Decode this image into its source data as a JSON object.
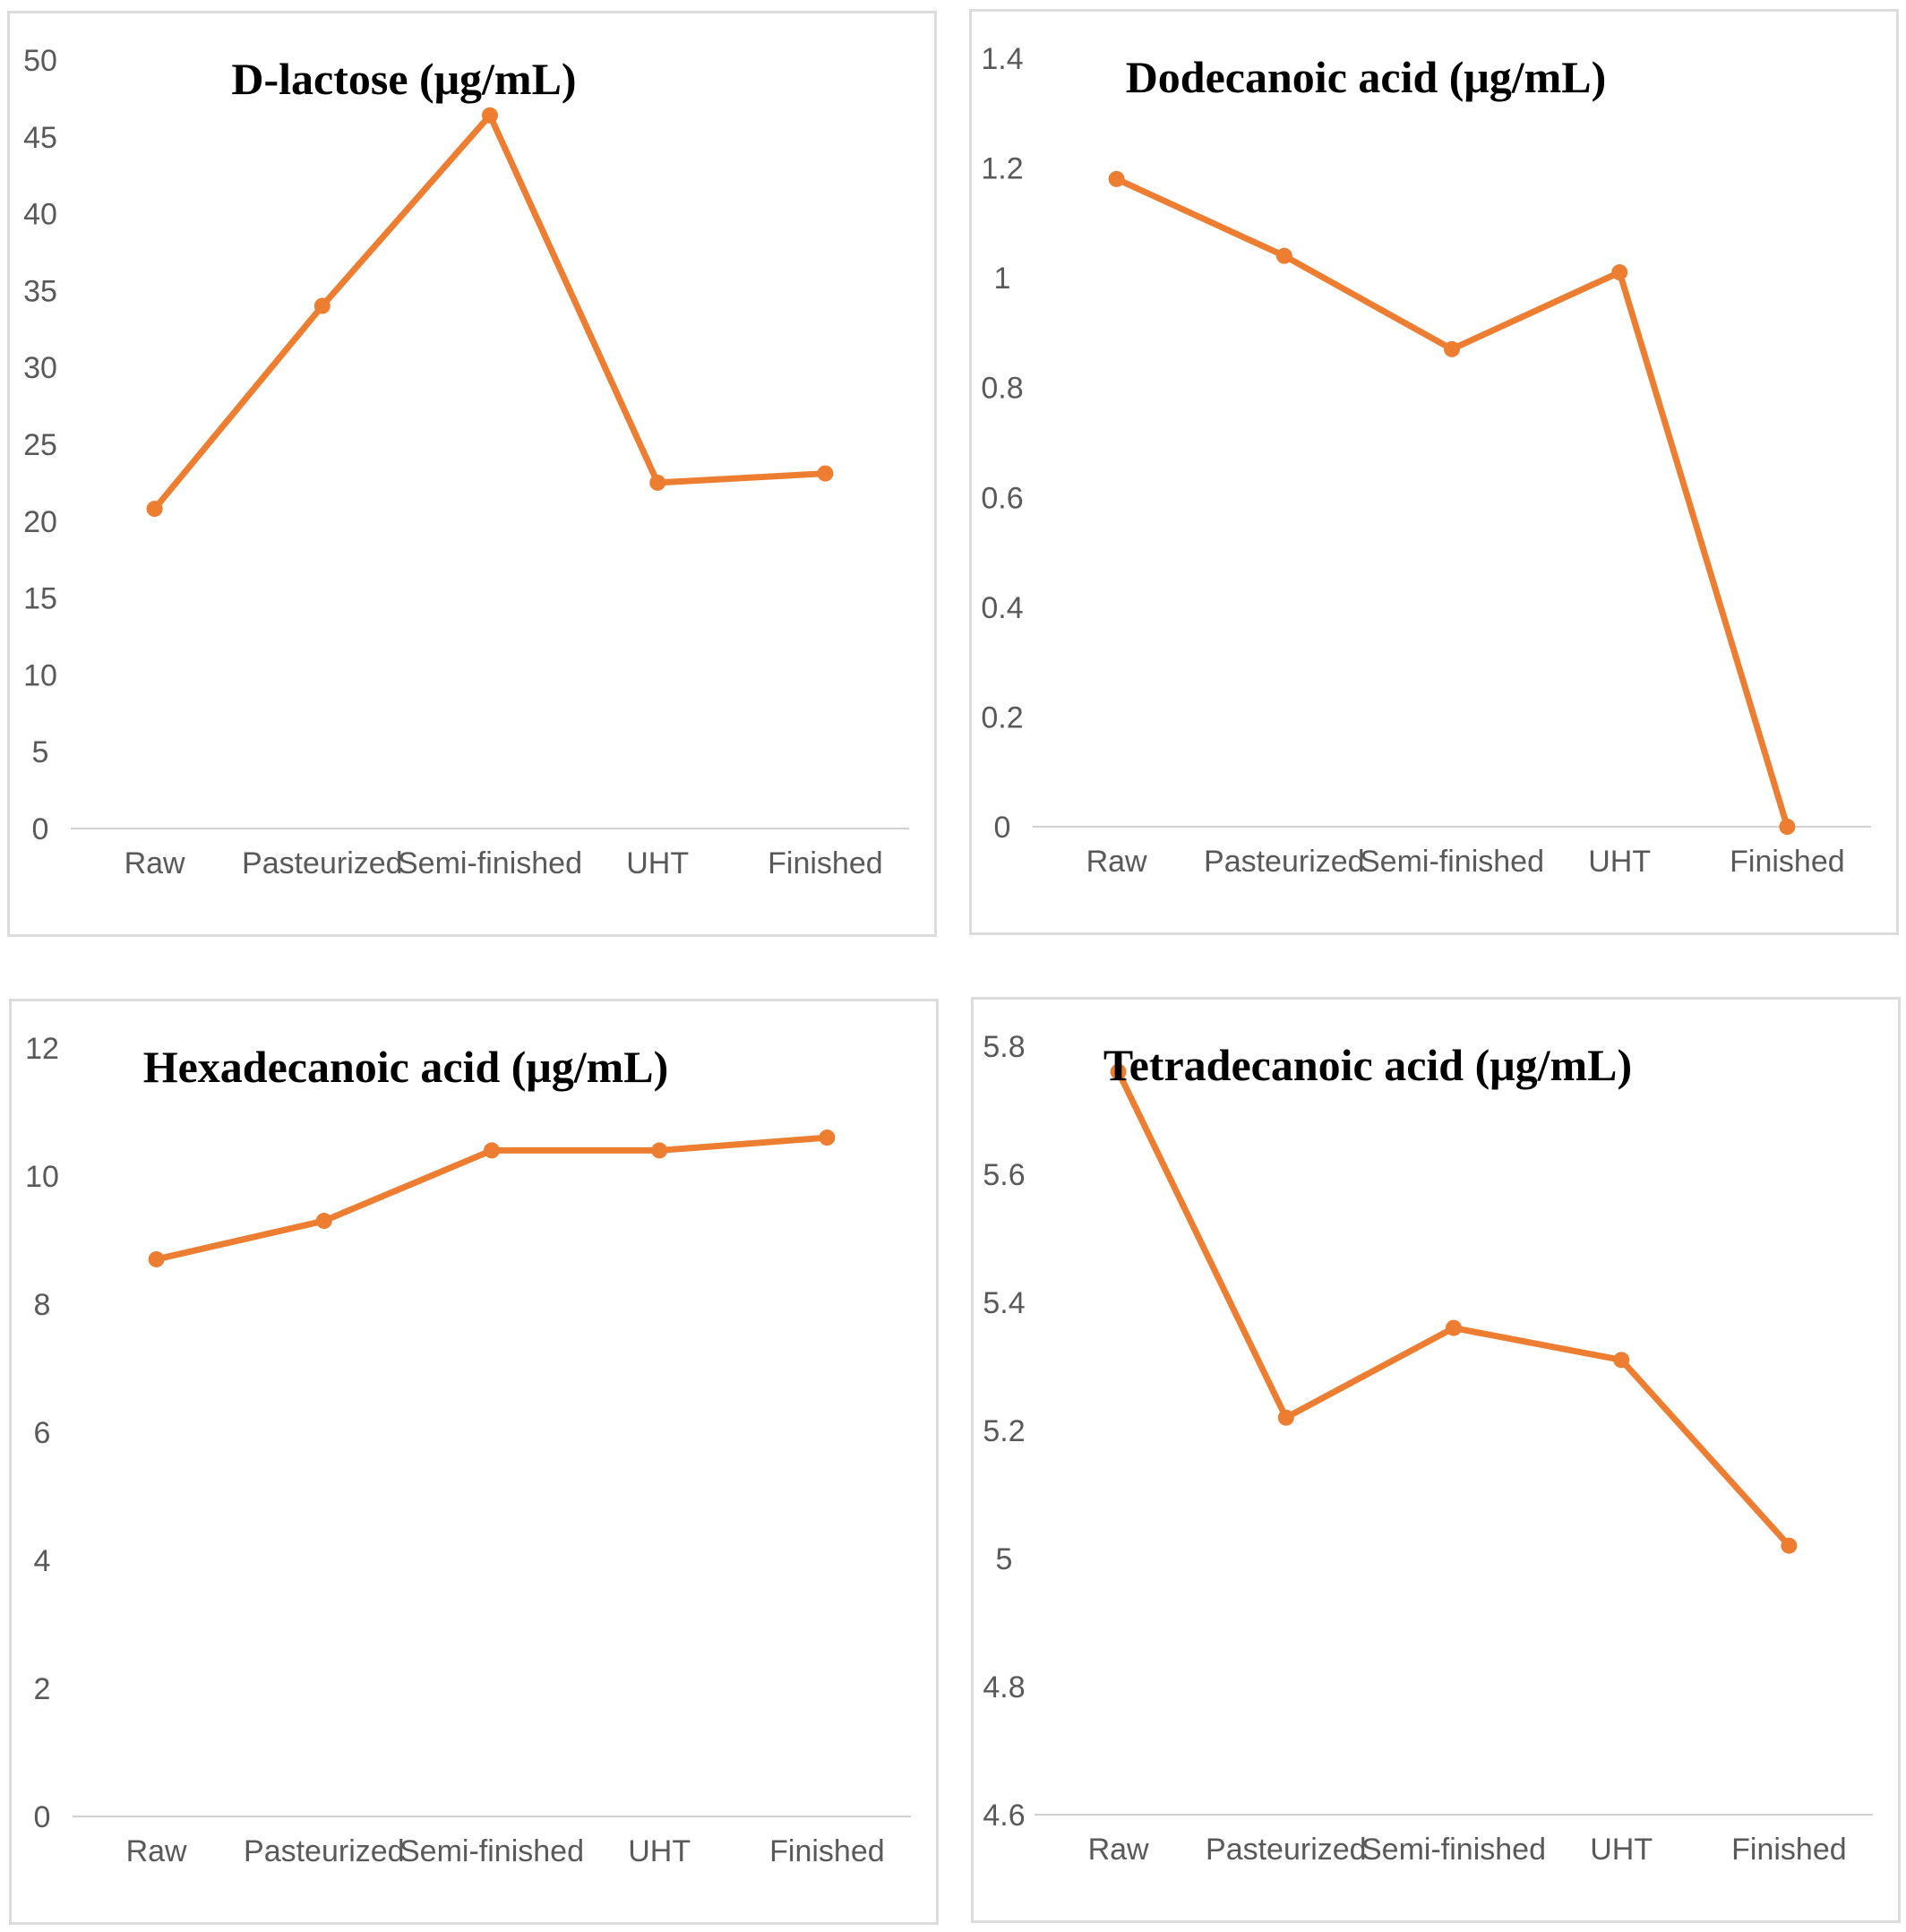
{
  "style": {
    "line_color": "#ED7D31",
    "axis_color": "#d0d0d0",
    "text_color": "#595959"
  },
  "chart_data": [
    {
      "type": "line",
      "title": "D-lactose (μg/mL)",
      "categories": [
        "Raw",
        "Pasteurized",
        "Semi-finished",
        "UHT",
        "Finished"
      ],
      "series": [
        {
          "values": [
            20.8,
            34.0,
            46.4,
            22.5,
            23.1
          ]
        }
      ],
      "ylim": [
        0,
        50
      ],
      "yticks": [
        "0",
        "5",
        "10",
        "15",
        "20",
        "25",
        "30",
        "35",
        "40",
        "45",
        "50"
      ],
      "grid": false
    },
    {
      "type": "line",
      "title": "Dodecanoic acid (μg/mL)",
      "categories": [
        "Raw",
        "Pasteurized",
        "Semi-finished",
        "UHT",
        "Finished"
      ],
      "series": [
        {
          "values": [
            1.18,
            1.04,
            0.87,
            1.01,
            0.0
          ]
        }
      ],
      "ylim": [
        0,
        1.4
      ],
      "yticks": [
        "0",
        "0.2",
        "0.4",
        "0.6",
        "0.8",
        "1",
        "1.2",
        "1.4"
      ],
      "grid": false
    },
    {
      "type": "line",
      "title": "Hexadecanoic acid (μg/mL)",
      "categories": [
        "Raw",
        "Pasteurized",
        "Semi-finished",
        "UHT",
        "Finished"
      ],
      "series": [
        {
          "values": [
            8.7,
            9.3,
            10.4,
            10.4,
            10.6
          ]
        }
      ],
      "ylim": [
        0,
        12
      ],
      "yticks": [
        "0",
        "2",
        "4",
        "6",
        "8",
        "10",
        "12"
      ],
      "grid": false
    },
    {
      "type": "line",
      "title": "Tetradecanoic acid (μg/mL)",
      "categories": [
        "Raw",
        "Pasteurized",
        "Semi-finished",
        "UHT",
        "Finished"
      ],
      "series": [
        {
          "values": [
            5.76,
            5.22,
            5.36,
            5.31,
            5.02
          ]
        }
      ],
      "ylim": [
        4.6,
        5.8
      ],
      "yticks": [
        "4.6",
        "4.8",
        "5",
        "5.2",
        "5.4",
        "5.6",
        "5.8"
      ],
      "grid": false
    }
  ]
}
